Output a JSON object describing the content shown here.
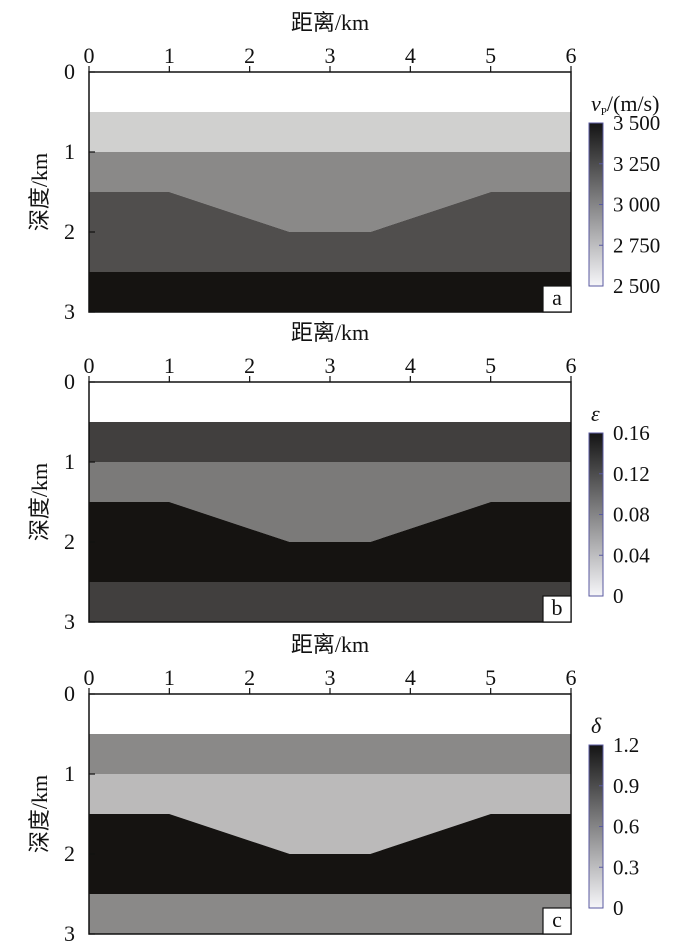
{
  "chart_data": [
    {
      "type": "heatmap",
      "panel_label": "a",
      "xlabel": "距离/km",
      "ylabel": "深度/km",
      "xlim": [
        0,
        6
      ],
      "ylim": [
        0,
        3
      ],
      "xticks": [
        "0",
        "1",
        "2",
        "3",
        "4",
        "5",
        "6"
      ],
      "yticks": [
        "0",
        "1",
        "2",
        "3"
      ],
      "colorbar": {
        "title_main": "v",
        "title_sub": "P",
        "title_unit": "/(m/s)",
        "range": [
          2500,
          3500
        ],
        "ticks": [
          3500,
          3250,
          3000,
          2750,
          2500
        ],
        "tick_labels": [
          "3 500",
          "3 250",
          "3 000",
          "2 750",
          "2 500"
        ]
      },
      "layers": [
        {
          "name": "layer-0",
          "top": [
            [
              0,
              0
            ],
            [
              6,
              0
            ]
          ],
          "bottom": [
            [
              0,
              0.5
            ],
            [
              6,
              0.5
            ]
          ],
          "value": 2500
        },
        {
          "name": "layer-1",
          "top": [
            [
              0,
              0.5
            ],
            [
              6,
              0.5
            ]
          ],
          "bottom": [
            [
              0,
              1.0
            ],
            [
              6,
              1.0
            ]
          ],
          "value": 2700
        },
        {
          "name": "layer-2",
          "top": [
            [
              0,
              1.0
            ],
            [
              6,
              1.0
            ]
          ],
          "bottom": [
            [
              0,
              1.5
            ],
            [
              1,
              1.5
            ],
            [
              2.5,
              2.0
            ],
            [
              3.5,
              2.0
            ],
            [
              5,
              1.5
            ],
            [
              6,
              1.5
            ]
          ],
          "value": 3000
        },
        {
          "name": "layer-3",
          "top": [
            [
              0,
              1.5
            ],
            [
              1,
              1.5
            ],
            [
              2.5,
              2.0
            ],
            [
              3.5,
              2.0
            ],
            [
              5,
              1.5
            ],
            [
              6,
              1.5
            ]
          ],
          "bottom": [
            [
              0,
              2.5
            ],
            [
              6,
              2.5
            ]
          ],
          "value": 3250
        },
        {
          "name": "layer-4",
          "top": [
            [
              0,
              2.5
            ],
            [
              6,
              2.5
            ]
          ],
          "bottom": [
            [
              0,
              3.0
            ],
            [
              6,
              3.0
            ]
          ],
          "value": 3500
        }
      ]
    },
    {
      "type": "heatmap",
      "panel_label": "b",
      "xlabel": "距离/km",
      "ylabel": "深度/km",
      "xlim": [
        0,
        6
      ],
      "ylim": [
        0,
        3
      ],
      "xticks": [
        "0",
        "1",
        "2",
        "3",
        "4",
        "5",
        "6"
      ],
      "yticks": [
        "0",
        "1",
        "2",
        "3"
      ],
      "colorbar": {
        "title_main": "ε",
        "title_sub": "",
        "title_unit": "",
        "range": [
          0,
          0.16
        ],
        "ticks": [
          0.16,
          0.12,
          0.08,
          0.04,
          0
        ],
        "tick_labels": [
          "0.16",
          "0.12",
          "0.08",
          "0.04",
          "0"
        ]
      },
      "layers": [
        {
          "name": "layer-0",
          "top": [
            [
              0,
              0
            ],
            [
              6,
              0
            ]
          ],
          "bottom": [
            [
              0,
              0.5
            ],
            [
              6,
              0.5
            ]
          ],
          "value": 0
        },
        {
          "name": "layer-1",
          "top": [
            [
              0,
              0.5
            ],
            [
              6,
              0.5
            ]
          ],
          "bottom": [
            [
              0,
              1.0
            ],
            [
              6,
              1.0
            ]
          ],
          "value": 0.13
        },
        {
          "name": "layer-2",
          "top": [
            [
              0,
              1.0
            ],
            [
              6,
              1.0
            ]
          ],
          "bottom": [
            [
              0,
              1.5
            ],
            [
              1,
              1.5
            ],
            [
              2.5,
              2.0
            ],
            [
              3.5,
              2.0
            ],
            [
              5,
              1.5
            ],
            [
              6,
              1.5
            ]
          ],
          "value": 0.09
        },
        {
          "name": "layer-3",
          "top": [
            [
              0,
              1.5
            ],
            [
              1,
              1.5
            ],
            [
              2.5,
              2.0
            ],
            [
              3.5,
              2.0
            ],
            [
              5,
              1.5
            ],
            [
              6,
              1.5
            ]
          ],
          "bottom": [
            [
              0,
              2.5
            ],
            [
              6,
              2.5
            ]
          ],
          "value": 0.16
        },
        {
          "name": "layer-4",
          "top": [
            [
              0,
              2.5
            ],
            [
              6,
              2.5
            ]
          ],
          "bottom": [
            [
              0,
              3.0
            ],
            [
              6,
              3.0
            ]
          ],
          "value": 0.13
        }
      ]
    },
    {
      "type": "heatmap",
      "panel_label": "c",
      "xlabel": "距离/km",
      "ylabel": "深度/km",
      "xlim": [
        0,
        6
      ],
      "ylim": [
        0,
        3
      ],
      "xticks": [
        "0",
        "1",
        "2",
        "3",
        "4",
        "5",
        "6"
      ],
      "yticks": [
        "0",
        "1",
        "2",
        "3"
      ],
      "colorbar": {
        "title_main": "δ",
        "title_sub": "",
        "title_unit": "",
        "range": [
          0,
          1.2
        ],
        "ticks": [
          1.2,
          0.9,
          0.6,
          0.3,
          0
        ],
        "tick_labels": [
          "1.2",
          "0.9",
          "0.6",
          "0.3",
          "0"
        ]
      },
      "layers": [
        {
          "name": "layer-0",
          "top": [
            [
              0,
              0
            ],
            [
              6,
              0
            ]
          ],
          "bottom": [
            [
              0,
              0.5
            ],
            [
              6,
              0.5
            ]
          ],
          "value": 0
        },
        {
          "name": "layer-1",
          "top": [
            [
              0,
              0.5
            ],
            [
              6,
              0.5
            ]
          ],
          "bottom": [
            [
              0,
              1.0
            ],
            [
              6,
              1.0
            ]
          ],
          "value": 0.6
        },
        {
          "name": "layer-2",
          "top": [
            [
              0,
              1.0
            ],
            [
              6,
              1.0
            ]
          ],
          "bottom": [
            [
              0,
              1.5
            ],
            [
              1,
              1.5
            ],
            [
              2.5,
              2.0
            ],
            [
              3.5,
              2.0
            ],
            [
              5,
              1.5
            ],
            [
              6,
              1.5
            ]
          ],
          "value": 0.35
        },
        {
          "name": "layer-3",
          "top": [
            [
              0,
              1.5
            ],
            [
              1,
              1.5
            ],
            [
              2.5,
              2.0
            ],
            [
              3.5,
              2.0
            ],
            [
              5,
              1.5
            ],
            [
              6,
              1.5
            ]
          ],
          "bottom": [
            [
              0,
              2.5
            ],
            [
              6,
              2.5
            ]
          ],
          "value": 1.2
        },
        {
          "name": "layer-4",
          "top": [
            [
              0,
              2.5
            ],
            [
              6,
              2.5
            ]
          ],
          "bottom": [
            [
              0,
              3.0
            ],
            [
              6,
              3.0
            ]
          ],
          "value": 0.6
        }
      ]
    }
  ]
}
